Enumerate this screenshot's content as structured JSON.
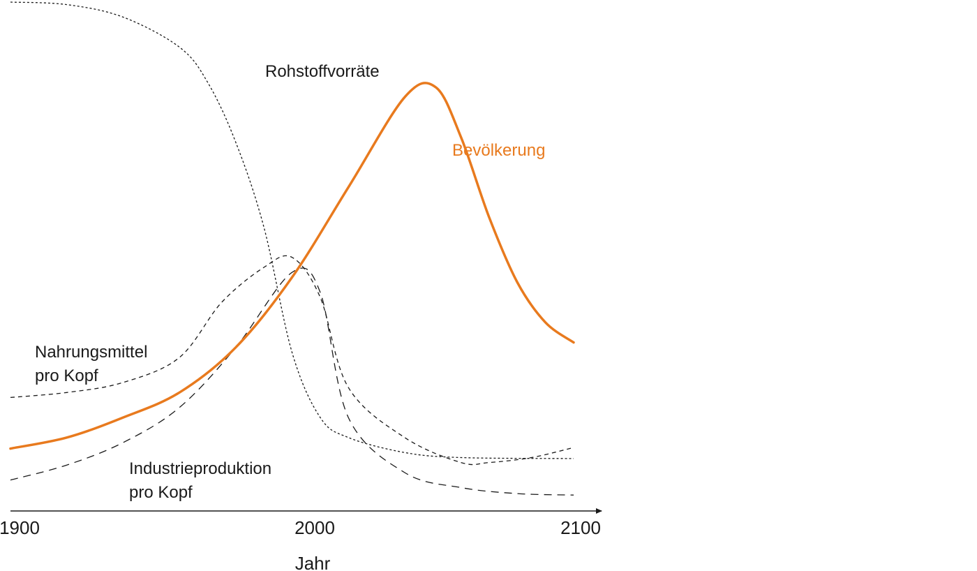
{
  "chart_data": {
    "type": "line",
    "title": "",
    "xlabel": "Jahr",
    "ylabel": "",
    "xlim": [
      1900,
      2100
    ],
    "ylim": [
      0,
      1
    ],
    "x_ticks": [
      "1900",
      "2000",
      "2100"
    ],
    "grid": false,
    "axes": "x-axis only with arrow",
    "colors": {
      "bevoelkerung": "#E87A1E",
      "other": "#1a1a1a"
    },
    "series": [
      {
        "id": "rohstoff",
        "name": "Rohstoffvorräte",
        "style": "dotted",
        "points": [
          [
            1900,
            1.0
          ],
          [
            1920,
            0.995
          ],
          [
            1940,
            0.97
          ],
          [
            1960,
            0.91
          ],
          [
            1970,
            0.84
          ],
          [
            1980,
            0.72
          ],
          [
            1990,
            0.55
          ],
          [
            2000,
            0.3
          ],
          [
            2010,
            0.17
          ],
          [
            2020,
            0.13
          ],
          [
            2040,
            0.1
          ],
          [
            2060,
            0.09
          ],
          [
            2100,
            0.088
          ]
        ]
      },
      {
        "id": "bevoelkerung",
        "name": "Bevölkerung",
        "style": "solid",
        "points": [
          [
            1900,
            0.108
          ],
          [
            1920,
            0.13
          ],
          [
            1940,
            0.17
          ],
          [
            1960,
            0.22
          ],
          [
            1980,
            0.31
          ],
          [
            2000,
            0.45
          ],
          [
            2020,
            0.63
          ],
          [
            2040,
            0.81
          ],
          [
            2051,
            0.83
          ],
          [
            2060,
            0.73
          ],
          [
            2070,
            0.57
          ],
          [
            2080,
            0.44
          ],
          [
            2090,
            0.36
          ],
          [
            2100,
            0.32
          ]
        ]
      },
      {
        "id": "nahrung",
        "name": "Nahrungsmittel pro Kopf",
        "style": "short-dashed",
        "points": [
          [
            1900,
            0.21
          ],
          [
            1920,
            0.22
          ],
          [
            1940,
            0.24
          ],
          [
            1960,
            0.29
          ],
          [
            1975,
            0.4
          ],
          [
            1990,
            0.47
          ],
          [
            2000,
            0.49
          ],
          [
            2010,
            0.41
          ],
          [
            2020,
            0.23
          ],
          [
            2040,
            0.13
          ],
          [
            2060,
            0.08
          ],
          [
            2070,
            0.08
          ],
          [
            2085,
            0.09
          ],
          [
            2100,
            0.11
          ]
        ]
      },
      {
        "id": "industrie",
        "name": "Industrieproduktion pro Kopf",
        "style": "long-dashed",
        "points": [
          [
            1900,
            0.045
          ],
          [
            1920,
            0.075
          ],
          [
            1940,
            0.12
          ],
          [
            1960,
            0.19
          ],
          [
            1980,
            0.31
          ],
          [
            2000,
            0.46
          ],
          [
            2010,
            0.42
          ],
          [
            2020,
            0.17
          ],
          [
            2040,
            0.06
          ],
          [
            2060,
            0.03
          ],
          [
            2080,
            0.018
          ],
          [
            2100,
            0.015
          ]
        ]
      }
    ],
    "labels": {
      "rohstoff": "Rohstoffvorräte",
      "bevoelkerung": "Bevölkerung",
      "nahrung_line1": "Nahrungsmittel",
      "nahrung_line2": "pro Kopf",
      "industrie_line1": "Industrieproduktion",
      "industrie_line2": "pro Kopf"
    }
  }
}
